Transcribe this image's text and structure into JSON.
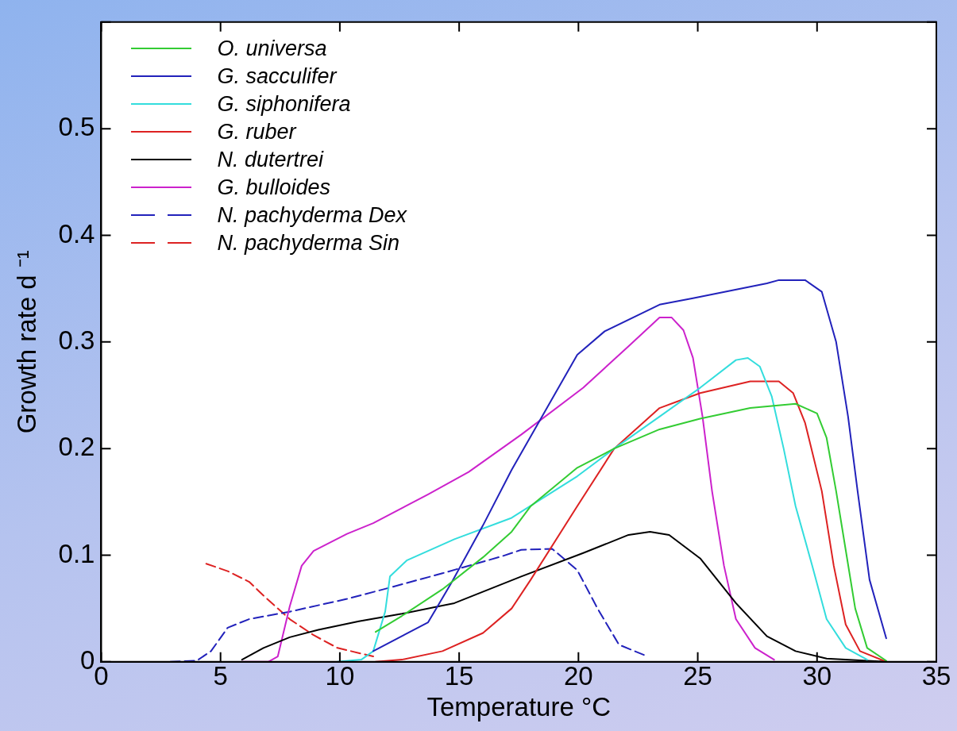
{
  "chart_data": {
    "type": "line",
    "xlabel": "Temperature °C",
    "ylabel": "Growth rate d ⁻¹",
    "xlim": [
      0,
      35
    ],
    "ylim": [
      0,
      0.6
    ],
    "xticks": [
      0,
      5,
      10,
      15,
      20,
      25,
      30,
      35
    ],
    "yticks": [
      0,
      0.1,
      0.2,
      0.3,
      0.4,
      0.5,
      {
        "value": 0.6,
        "label": null
      }
    ],
    "grid": false,
    "legend": "top left",
    "marker": "none",
    "line_style": "solid",
    "series": [
      {
        "name": "O. universa",
        "color": "#33cc33",
        "x": [
          11.5,
          12.6,
          14.3,
          16.0,
          17.2,
          18.0,
          19.95,
          21.5,
          23.4,
          25.1,
          27.2,
          29.1,
          30.0,
          30.4,
          30.8,
          31.2,
          31.6,
          32.1,
          32.9
        ],
        "values": [
          0.028,
          0.043,
          0.068,
          0.098,
          0.122,
          0.146,
          0.182,
          0.2,
          0.218,
          0.228,
          0.238,
          0.242,
          0.233,
          0.21,
          0.16,
          0.105,
          0.05,
          0.013,
          0.001
        ]
      },
      {
        "name": "G. sacculifer",
        "color": "#2222bb",
        "x": [
          11.4,
          13.7,
          14.7,
          16.0,
          17.2,
          19.95,
          21.1,
          23.4,
          24.8,
          27.9,
          28.4,
          29.5,
          30.2,
          30.8,
          31.3,
          31.7,
          32.2,
          32.9
        ],
        "values": [
          0.01,
          0.037,
          0.075,
          0.128,
          0.18,
          0.288,
          0.31,
          0.335,
          0.341,
          0.355,
          0.358,
          0.358,
          0.347,
          0.3,
          0.23,
          0.16,
          0.077,
          0.022
        ]
      },
      {
        "name": "G. siphonifera",
        "color": "#33dddd",
        "x": [
          9.9,
          10.9,
          11.4,
          11.9,
          12.1,
          12.8,
          14.8,
          17.2,
          19.95,
          21.5,
          23.4,
          25.1,
          26.6,
          27.1,
          27.6,
          28.1,
          28.6,
          29.1,
          29.8,
          30.4,
          31.2,
          32.1
        ],
        "values": [
          0,
          0.002,
          0.01,
          0.047,
          0.08,
          0.095,
          0.115,
          0.135,
          0.174,
          0.2,
          0.23,
          0.257,
          0.283,
          0.285,
          0.277,
          0.249,
          0.2,
          0.146,
          0.09,
          0.04,
          0.013,
          0.002
        ]
      },
      {
        "name": "G. ruber",
        "color": "#dd2222",
        "x": [
          11.5,
          12.6,
          14.3,
          16.0,
          17.2,
          18.0,
          19.95,
          21.5,
          23.4,
          25.1,
          27.2,
          28.4,
          29.0,
          29.5,
          30.2,
          30.7,
          31.2,
          31.8,
          32.9
        ],
        "values": [
          0,
          0.002,
          0.01,
          0.027,
          0.05,
          0.077,
          0.146,
          0.2,
          0.238,
          0.252,
          0.263,
          0.263,
          0.252,
          0.224,
          0.16,
          0.09,
          0.035,
          0.01,
          0
        ]
      },
      {
        "name": "N. dutertrei",
        "color": "#000000",
        "x": [
          5.9,
          6.8,
          7.9,
          9.1,
          10.8,
          12.6,
          14.8,
          17.6,
          20.2,
          22.1,
          23.0,
          23.8,
          25.1,
          26.6,
          27.9,
          29.1,
          30.4,
          32.9
        ],
        "values": [
          0.002,
          0.013,
          0.023,
          0.03,
          0.038,
          0.045,
          0.055,
          0.08,
          0.102,
          0.119,
          0.122,
          0.119,
          0.097,
          0.055,
          0.024,
          0.01,
          0.003,
          0
        ]
      },
      {
        "name": "G. bulloides",
        "color": "#cc22cc",
        "x": [
          5.9,
          7.0,
          7.4,
          7.9,
          8.4,
          8.9,
          10.3,
          11.4,
          13.7,
          15.4,
          17.6,
          20.2,
          22.1,
          23.4,
          23.9,
          24.4,
          24.8,
          25.2,
          25.6,
          26.1,
          26.6,
          27.4,
          28.2
        ],
        "values": [
          0,
          0,
          0.005,
          0.052,
          0.09,
          0.104,
          0.12,
          0.13,
          0.157,
          0.178,
          0.213,
          0.257,
          0.296,
          0.323,
          0.323,
          0.311,
          0.285,
          0.23,
          0.16,
          0.09,
          0.04,
          0.013,
          0.002
        ]
      },
      {
        "name": "N. pachyderma Dex",
        "color": "#2222bb",
        "line_style": "dashed",
        "x": [
          2.9,
          4.0,
          4.6,
          5.3,
          6.2,
          7.9,
          10.3,
          12.0,
          14.3,
          16.8,
          17.6,
          18.9,
          19.95,
          20.8,
          21.7,
          22.9
        ],
        "values": [
          0,
          0.001,
          0.01,
          0.032,
          0.04,
          0.047,
          0.059,
          0.069,
          0.083,
          0.099,
          0.105,
          0.106,
          0.086,
          0.05,
          0.016,
          0.005
        ]
      },
      {
        "name": "N. pachyderma Sin",
        "color": "#dd2222",
        "line_style": "dashed",
        "x": [
          4.4,
          5.3,
          6.2,
          6.9,
          7.9,
          8.9,
          9.9,
          11.4
        ],
        "values": [
          0.092,
          0.085,
          0.075,
          0.06,
          0.04,
          0.025,
          0.013,
          0.005
        ]
      }
    ]
  }
}
